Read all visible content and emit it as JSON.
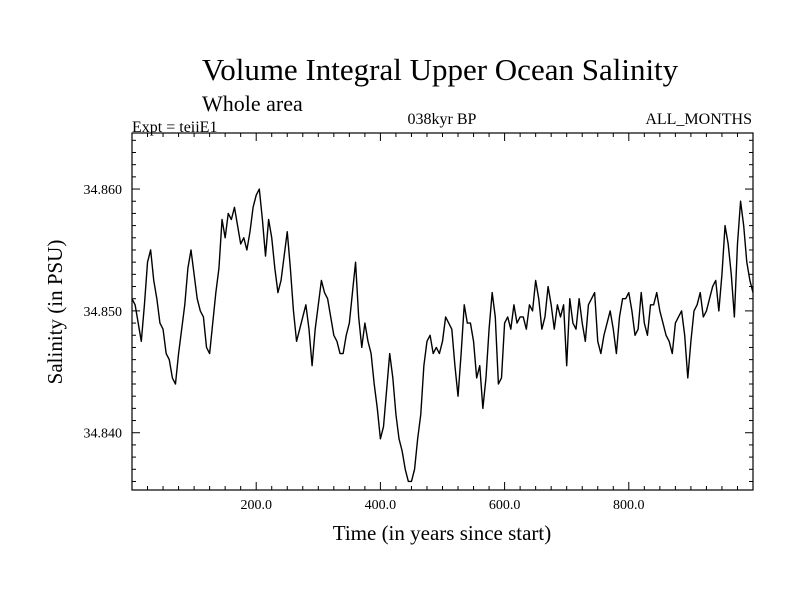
{
  "chart_data": {
    "type": "line",
    "title": "Volume Integral Upper Ocean Salinity",
    "subtitle": "Whole area",
    "annotations": {
      "left": "Expt = teiiE1",
      "center": "038kyr BP",
      "right": "ALL_MONTHS"
    },
    "xlabel": "Time (in years since start)",
    "ylabel": "Salinity (in PSU)",
    "xlim": [
      0,
      1000
    ],
    "ylim": [
      34.8353,
      34.8646
    ],
    "x_ticks": [
      200,
      400,
      600,
      800
    ],
    "x_tick_labels": [
      "200.0",
      "400.0",
      "600.0",
      "800.0"
    ],
    "y_ticks": [
      34.84,
      34.85,
      34.86
    ],
    "y_tick_labels": [
      "34.840",
      "34.850",
      "34.860"
    ],
    "grid": false,
    "series": [
      {
        "color": "#000000",
        "x": [
          0,
          5,
          10,
          15,
          20,
          25,
          30,
          35,
          40,
          45,
          50,
          55,
          60,
          65,
          70,
          75,
          80,
          85,
          90,
          95,
          100,
          105,
          110,
          115,
          120,
          125,
          130,
          135,
          140,
          145,
          150,
          155,
          160,
          165,
          170,
          175,
          180,
          185,
          190,
          195,
          200,
          205,
          210,
          215,
          220,
          225,
          230,
          235,
          240,
          245,
          250,
          255,
          260,
          265,
          270,
          275,
          280,
          285,
          290,
          295,
          300,
          305,
          310,
          315,
          320,
          325,
          330,
          335,
          340,
          345,
          350,
          355,
          360,
          365,
          370,
          375,
          380,
          385,
          390,
          395,
          400,
          405,
          410,
          415,
          420,
          425,
          430,
          435,
          440,
          445,
          450,
          455,
          460,
          465,
          470,
          475,
          480,
          485,
          490,
          495,
          500,
          505,
          510,
          515,
          520,
          525,
          530,
          535,
          540,
          545,
          550,
          555,
          560,
          565,
          570,
          575,
          580,
          585,
          590,
          595,
          600,
          605,
          610,
          615,
          620,
          625,
          630,
          635,
          640,
          645,
          650,
          655,
          660,
          665,
          670,
          675,
          680,
          685,
          690,
          695,
          700,
          705,
          710,
          715,
          720,
          725,
          730,
          735,
          740,
          745,
          750,
          755,
          760,
          765,
          770,
          775,
          780,
          785,
          790,
          795,
          800,
          805,
          810,
          815,
          820,
          825,
          830,
          835,
          840,
          845,
          850,
          855,
          860,
          865,
          870,
          875,
          880,
          885,
          890,
          895,
          900,
          905,
          910,
          915,
          920,
          925,
          930,
          935,
          940,
          945,
          950,
          955,
          960,
          965,
          970,
          975,
          980,
          985,
          990,
          995,
          1000
        ],
        "y": [
          34.851,
          34.8505,
          34.849,
          34.8475,
          34.8505,
          34.854,
          34.855,
          34.8525,
          34.851,
          34.849,
          34.8485,
          34.8465,
          34.846,
          34.8445,
          34.844,
          34.8465,
          34.8485,
          34.8505,
          34.8535,
          34.855,
          34.853,
          34.851,
          34.85,
          34.8495,
          34.847,
          34.8465,
          34.849,
          34.8515,
          34.8535,
          34.8575,
          34.856,
          34.858,
          34.8575,
          34.8585,
          34.857,
          34.8555,
          34.856,
          34.855,
          34.8565,
          34.8585,
          34.8595,
          34.86,
          34.8575,
          34.8545,
          34.8575,
          34.856,
          34.8535,
          34.8515,
          34.8525,
          34.8545,
          34.8565,
          34.8535,
          34.85,
          34.8475,
          34.8485,
          34.8495,
          34.8505,
          34.8485,
          34.8455,
          34.8485,
          34.8505,
          34.8525,
          34.8515,
          34.851,
          34.8495,
          34.848,
          34.8475,
          34.8465,
          34.8465,
          34.848,
          34.849,
          34.8515,
          34.854,
          34.8495,
          34.847,
          34.849,
          34.8475,
          34.8465,
          34.844,
          34.842,
          34.8395,
          34.8405,
          34.8435,
          34.8465,
          34.8445,
          34.8415,
          34.8395,
          34.8385,
          34.837,
          34.836,
          34.836,
          34.837,
          34.8395,
          34.8415,
          34.8455,
          34.8475,
          34.848,
          34.8465,
          34.847,
          34.8465,
          34.8475,
          34.8495,
          34.849,
          34.8485,
          34.8455,
          34.843,
          34.8465,
          34.8505,
          34.849,
          34.849,
          34.8475,
          34.8445,
          34.8455,
          34.842,
          34.8445,
          34.8485,
          34.8515,
          34.8495,
          34.844,
          34.8445,
          34.849,
          34.8495,
          34.8485,
          34.8505,
          34.849,
          34.8495,
          34.8495,
          34.8485,
          34.8505,
          34.85,
          34.8525,
          34.851,
          34.8485,
          34.8495,
          34.852,
          34.8505,
          34.8485,
          34.8505,
          34.8495,
          34.8505,
          34.8455,
          34.851,
          34.849,
          34.8485,
          34.851,
          34.849,
          34.8475,
          34.8505,
          34.851,
          34.8515,
          34.8475,
          34.8465,
          34.848,
          34.849,
          34.85,
          34.8485,
          34.8465,
          34.8495,
          34.851,
          34.851,
          34.8515,
          34.85,
          34.848,
          34.8485,
          34.8515,
          34.849,
          34.848,
          34.8505,
          34.8505,
          34.8515,
          34.85,
          34.849,
          34.848,
          34.8475,
          34.8465,
          34.849,
          34.8495,
          34.85,
          34.848,
          34.8445,
          34.8475,
          34.85,
          34.8505,
          34.8515,
          34.8495,
          34.85,
          34.851,
          34.852,
          34.8525,
          34.85,
          34.853,
          34.857,
          34.8555,
          34.853,
          34.8495,
          34.8555,
          34.859,
          34.857,
          34.854,
          34.8525,
          34.8515
        ]
      }
    ]
  }
}
